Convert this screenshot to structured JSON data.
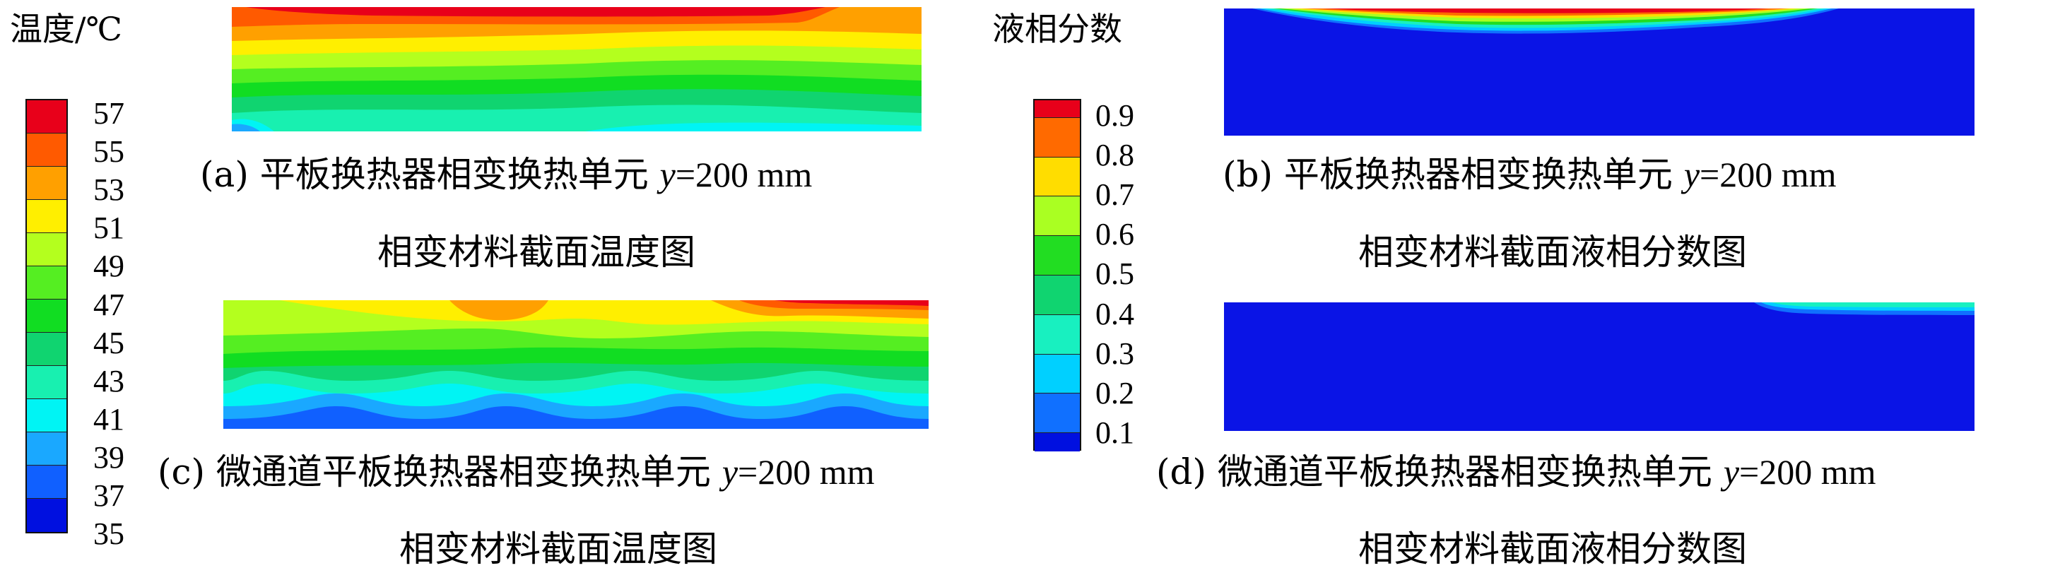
{
  "temperature_legend": {
    "title": "温度/℃",
    "ticks": [
      "57",
      "55",
      "53",
      "51",
      "49",
      "47",
      "45",
      "43",
      "41",
      "39",
      "37",
      "35"
    ],
    "colors": [
      "#e8001a",
      "#ff5a00",
      "#ffa000",
      "#ffef00",
      "#b4ff1e",
      "#55ee22",
      "#11dd22",
      "#10d470",
      "#18f0b0",
      "#00f4f4",
      "#1aa8ff",
      "#1060ff",
      "#0010e0"
    ]
  },
  "liquid_fraction_legend": {
    "title": "液相分数",
    "ticks": [
      "0.9",
      "0.8",
      "0.7",
      "0.6",
      "0.5",
      "0.4",
      "0.3",
      "0.2",
      "0.1"
    ],
    "colors": [
      "#e8001a",
      "#ff6a00",
      "#ffdd00",
      "#aaff22",
      "#22dd22",
      "#10d470",
      "#18f0c0",
      "#00d0ff",
      "#1070ff",
      "#0010e0"
    ]
  },
  "panels": {
    "a": {
      "caption_line1_prefix": "(a) 平板换热器相变换热单元 ",
      "y_var": "y",
      "caption_line1_suffix": "=200 mm",
      "caption_line2": "相变材料截面温度图"
    },
    "b": {
      "caption_line1_prefix": "(b) 平板换热器相变换热单元 ",
      "y_var": "y",
      "caption_line1_suffix": "=200 mm",
      "caption_line2": "相变材料截面液相分数图"
    },
    "c": {
      "caption_line1_prefix": "(c) 微通道平板换热器相变换热单元 ",
      "y_var": "y",
      "caption_line1_suffix": "=200 mm",
      "caption_line2": "相变材料截面温度图"
    },
    "d": {
      "caption_line1_prefix": "(d) 微通道平板换热器相变换热单元 ",
      "y_var": "y",
      "caption_line1_suffix": "=200 mm",
      "caption_line2": "相变材料截面液相分数图"
    }
  }
}
